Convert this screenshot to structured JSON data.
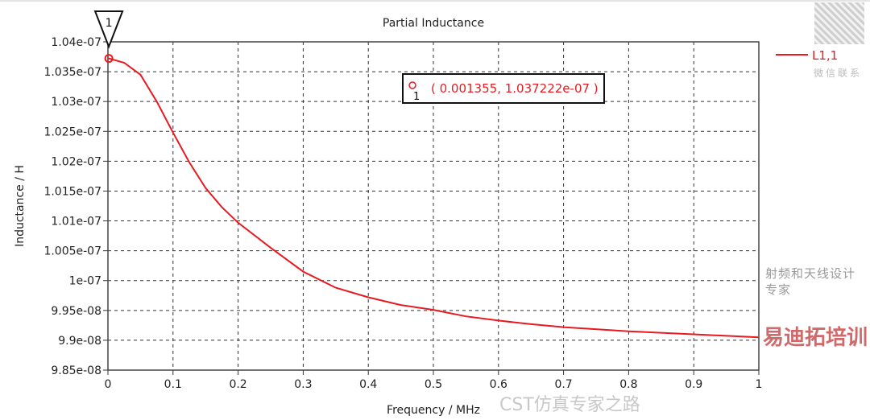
{
  "chart_data": {
    "type": "line",
    "title": "Partial Inductance",
    "xlabel": "Frequency / MHz",
    "ylabel": "Inductance / H",
    "xlim": [
      0,
      1
    ],
    "ylim": [
      9.85e-08,
      1.04e-07
    ],
    "grid": true,
    "x_ticks": [
      "0",
      "0.1",
      "0.2",
      "0.3",
      "0.4",
      "0.5",
      "0.6",
      "0.7",
      "0.8",
      "0.9",
      "1"
    ],
    "y_ticks": [
      "9.85e-08",
      "9.9e-08",
      "9.95e-08",
      "1e-07",
      "1.005e-07",
      "1.01e-07",
      "1.015e-07",
      "1.02e-07",
      "1.025e-07",
      "1.03e-07",
      "1.035e-07",
      "1.04e-07"
    ],
    "legend": {
      "position": "right",
      "entries": [
        "L1,1"
      ]
    },
    "series": [
      {
        "name": "L1,1",
        "color": "#e8191f",
        "x": [
          0.001355,
          0.025,
          0.05,
          0.075,
          0.1,
          0.125,
          0.15,
          0.175,
          0.2,
          0.25,
          0.3,
          0.35,
          0.4,
          0.45,
          0.5,
          0.55,
          0.6,
          0.65,
          0.7,
          0.8,
          0.9,
          1.0
        ],
        "y": [
          1.037222e-07,
          1.0365e-07,
          1.0345e-07,
          1.03e-07,
          1.0248e-07,
          1.0198e-07,
          1.0155e-07,
          1.0123e-07,
          1.0097e-07,
          1.0055e-07,
          1.0015e-07,
          9.988e-08,
          9.972e-08,
          9.959e-08,
          9.951e-08,
          9.94e-08,
          9.933e-08,
          9.927e-08,
          9.922e-08,
          9.915e-08,
          9.91e-08,
          9.905e-08
        ]
      }
    ],
    "marker": {
      "label": "1",
      "x": 0.001355,
      "y": 1.037222e-07,
      "annotation": "( 0.001355, 1.037222e-07 )"
    }
  },
  "watermarks": {
    "wechat_contact": "微信联系",
    "channel": "CST仿真专家之路",
    "brand": "易迪拓培训",
    "slogan": "射频和天线设计专家"
  }
}
